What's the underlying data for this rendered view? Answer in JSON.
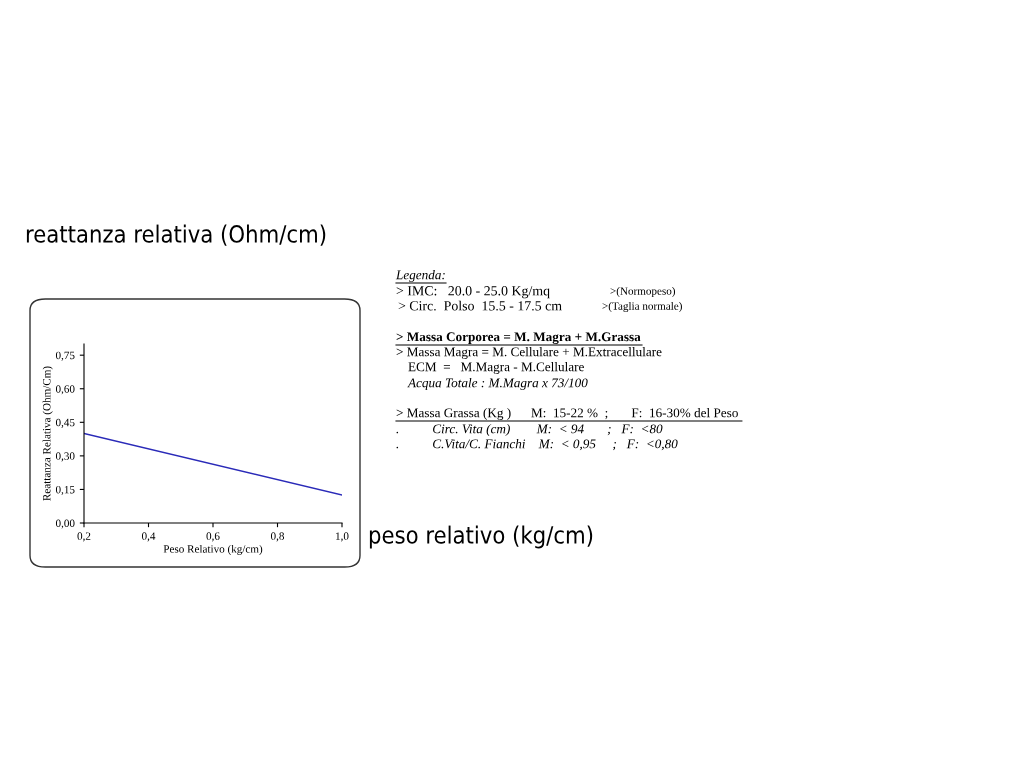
{
  "chart_data": {
    "type": "line",
    "xlabel": "Peso Relativo (kg/cm)",
    "ylabel": "Reattanza Relativa (Ohm/Cm)",
    "x": [
      0.2,
      1.0
    ],
    "series": [
      {
        "color": "#2a2ab8",
        "values": [
          0.4,
          0.125
        ]
      }
    ],
    "xlim": [
      0.2,
      1.0
    ],
    "xticks": [
      {
        "value": 0.2,
        "label": "0,2"
      },
      {
        "value": 0.4,
        "label": "0,4"
      },
      {
        "value": 0.6,
        "label": "0,6"
      },
      {
        "value": 0.8,
        "label": "0,8"
      },
      {
        "value": 1.0,
        "label": "1,0"
      }
    ],
    "ylim": [
      0,
      0.8
    ],
    "yticks": [
      {
        "value": 0,
        "label": "0,00"
      },
      {
        "value": 0.15,
        "label": "0,15"
      },
      {
        "value": 0.3,
        "label": "0,30"
      },
      {
        "value": 0.45,
        "label": "0,45"
      },
      {
        "value": 0.6,
        "label": "0,60"
      },
      {
        "value": 0.75,
        "label": "0,75"
      }
    ],
    "grid": false,
    "legend": false,
    "annotations": [
      "Legenda:",
      "> IMC:   20.0 - 25.0 Kg/mq",
      ">(Normopeso)",
      "> Circ.  Polso  15.5 - 17.5 cm",
      ">(Taglia normale)",
      "> Massa Corporea = M. Magra + M.Grassa",
      "> Massa Magra = M. Cellulare + M.Extracellulare",
      "ECM  =   M.Magra - M.Cellulare",
      "Acqua Totale : M.Magra x 73/100",
      "> Massa Grassa (Kg )      M:  15-22 %  ;       F:  16-30% del Peso",
      ".          Circ. Vita (cm)        M:  < 94       ;   F:  <80",
      ".          C.Vita/C. Fianchi    M:  < 0,95     ;   F:  <0,80",
      "reattanza relativa (Ohm/cm)",
      "peso relativo (kg/cm)"
    ]
  }
}
